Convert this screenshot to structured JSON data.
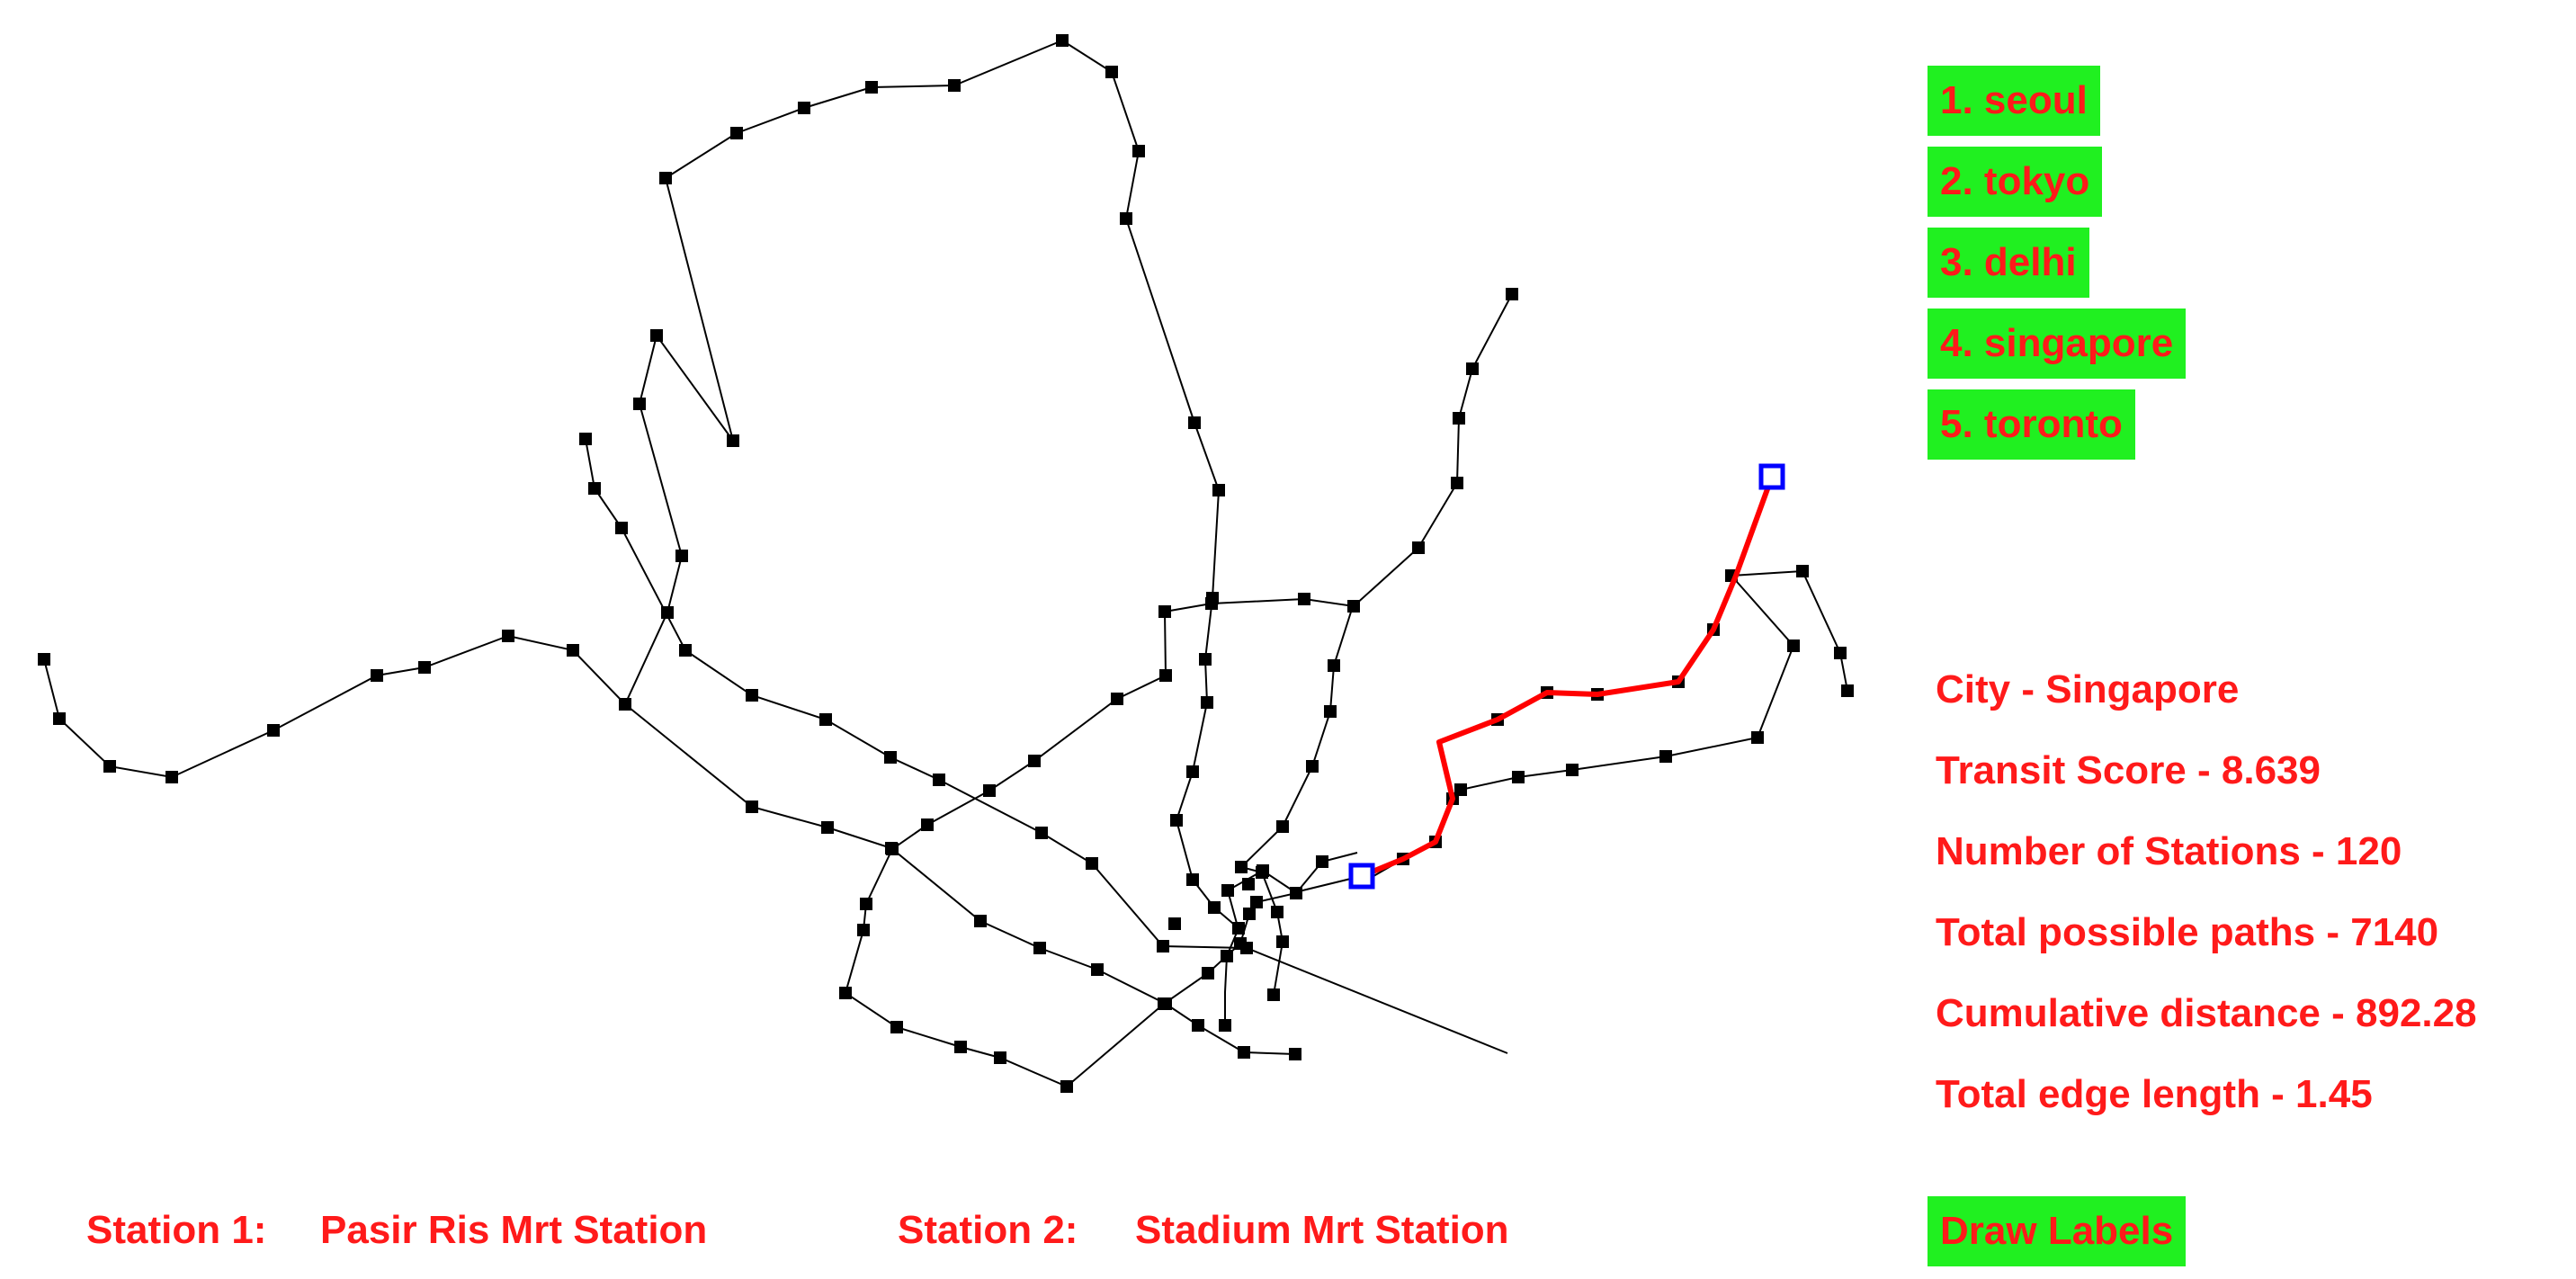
{
  "colors": {
    "button_bg": "#20f020",
    "text_red": "#ff1a1a",
    "network_line": "#000000",
    "station_node": "#000000",
    "path_highlight": "#ff0000",
    "endpoint_marker": "#0000ff"
  },
  "city_menu": [
    {
      "label": "1. seoul"
    },
    {
      "label": "2. tokyo"
    },
    {
      "label": "3. delhi"
    },
    {
      "label": "4. singapore"
    },
    {
      "label": "5. toronto"
    }
  ],
  "stats": {
    "city": "City - Singapore",
    "transit_score": "Transit Score - 8.639",
    "num_stations": "Number of Stations - 120",
    "possible_paths": "Total possible paths - 7140",
    "cumulative_distance": "Cumulative distance - 892.28",
    "edge_length": "Total edge length - 1.45"
  },
  "selection": {
    "station1_prefix": "Station 1:",
    "station1_name": "Pasir Ris Mrt Station",
    "station2_prefix": "Station 2:",
    "station2_name": "Stadium Mrt Station"
  },
  "draw_labels_button": "Draw Labels"
}
